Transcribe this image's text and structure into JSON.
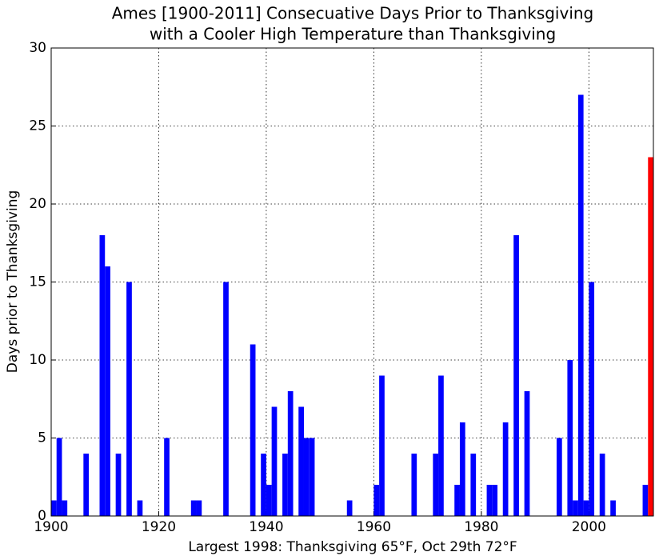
{
  "chart_data": {
    "type": "bar",
    "title": [
      "Ames [1900-2011] Consecuative Days Prior to Thanksgiving",
      "with a Cooler High Temperature than Thanksgiving"
    ],
    "xlabel": "Largest 1998: Thanksgiving 65°F, Oct 29th 72°F",
    "ylabel": "Days prior to Thanksgiving",
    "x": [
      1900,
      1901,
      1902,
      1906,
      1909,
      1910,
      1912,
      1914,
      1916,
      1921,
      1926,
      1927,
      1932,
      1937,
      1939,
      1940,
      1941,
      1943,
      1944,
      1946,
      1947,
      1948,
      1955,
      1960,
      1961,
      1967,
      1971,
      1972,
      1975,
      1976,
      1978,
      1981,
      1982,
      1984,
      1986,
      1988,
      1994,
      1996,
      1997,
      1998,
      1999,
      2000,
      2002,
      2004,
      2010,
      2011
    ],
    "values": [
      1,
      5,
      1,
      4,
      18,
      16,
      4,
      15,
      1,
      5,
      1,
      1,
      15,
      11,
      4,
      2,
      7,
      4,
      8,
      7,
      5,
      5,
      1,
      2,
      9,
      4,
      4,
      9,
      2,
      6,
      4,
      2,
      2,
      6,
      18,
      8,
      5,
      10,
      1,
      27,
      1,
      15,
      4,
      1,
      2,
      23
    ],
    "color": "#0000ff",
    "last_color": "#ff0000",
    "xlim": [
      1900,
      2012
    ],
    "xticks": [
      1900,
      1920,
      1940,
      1960,
      1980,
      2000
    ],
    "ylim": [
      0,
      30
    ],
    "yticks": [
      0,
      5,
      10,
      15,
      20,
      25,
      30
    ],
    "grid": true
  }
}
